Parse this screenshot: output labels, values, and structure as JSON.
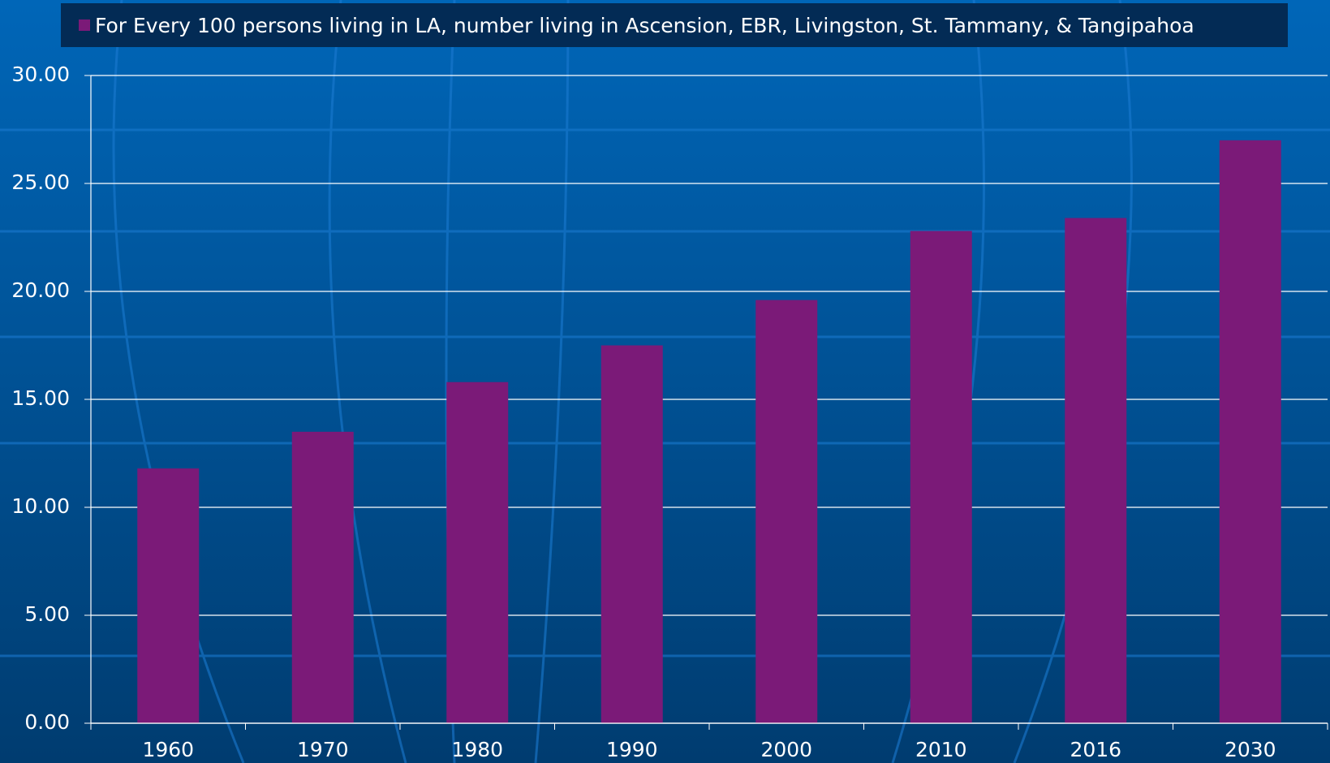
{
  "chart_data": {
    "type": "bar",
    "legend": "For Every 100 persons living in LA, number living in Ascension, EBR, Livingston, St. Tammany, & Tangipahoa",
    "categories": [
      "1960",
      "1970",
      "1980",
      "1990",
      "2000",
      "2010",
      "2016",
      "2030"
    ],
    "values": [
      11.8,
      13.5,
      15.8,
      17.5,
      19.6,
      22.8,
      23.4,
      27.0
    ],
    "color": "#7b1a78",
    "ylim": [
      0,
      30
    ],
    "yticks": [
      {
        "value": 0,
        "label": "0.00"
      },
      {
        "value": 5,
        "label": "5.00"
      },
      {
        "value": 10,
        "label": "10.00"
      },
      {
        "value": 15,
        "label": "15.00"
      },
      {
        "value": 20,
        "label": "20.00"
      },
      {
        "value": 25,
        "label": "25.00"
      },
      {
        "value": 30,
        "label": "30.00"
      }
    ],
    "grid": true
  }
}
